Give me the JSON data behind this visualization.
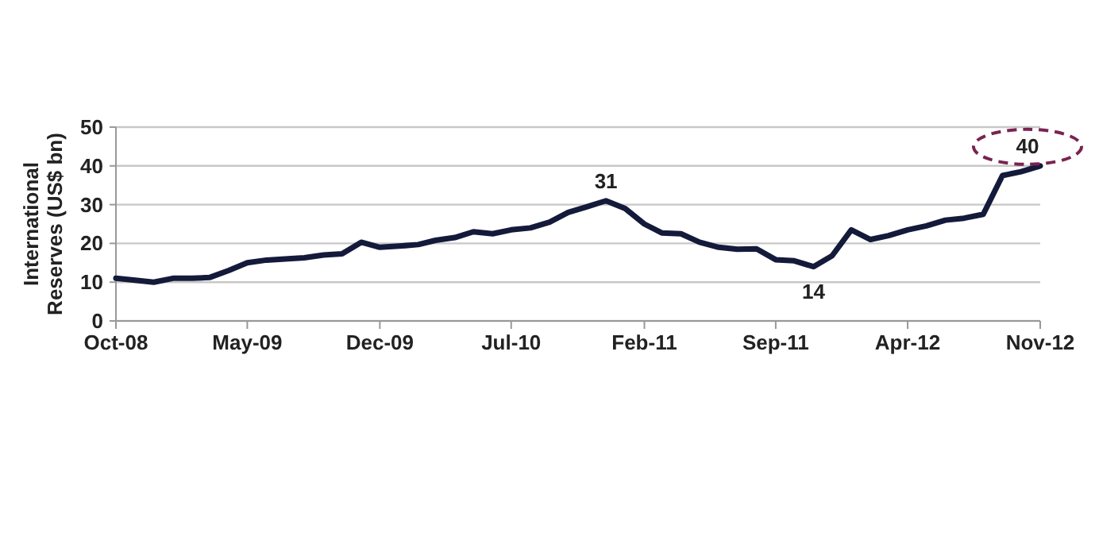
{
  "chart_data": {
    "type": "line",
    "ylabel": "International Reserves (US$ bn)",
    "x": [
      "2008-10",
      "2008-11",
      "2008-12",
      "2009-01",
      "2009-02",
      "2009-03",
      "2009-04",
      "2009-05",
      "2009-06",
      "2009-07",
      "2009-08",
      "2009-09",
      "2009-10",
      "2009-11",
      "2009-12",
      "2010-01",
      "2010-02",
      "2010-03",
      "2010-04",
      "2010-05",
      "2010-06",
      "2010-07",
      "2010-08",
      "2010-09",
      "2010-10",
      "2010-11",
      "2010-12",
      "2011-01",
      "2011-02",
      "2011-03",
      "2011-04",
      "2011-05",
      "2011-06",
      "2011-07",
      "2011-08",
      "2011-09",
      "2011-10",
      "2011-11",
      "2011-12",
      "2012-01",
      "2012-02",
      "2012-03",
      "2012-04",
      "2012-05",
      "2012-06",
      "2012-07",
      "2012-08",
      "2012-09",
      "2012-10",
      "2012-11"
    ],
    "series": [
      {
        "color": "#141a3a",
        "values": [
          11,
          10.5,
          10,
          11,
          11,
          11.2,
          13,
          15,
          15.7,
          16,
          16.3,
          17,
          17.3,
          20.3,
          19,
          19.3,
          19.7,
          20.8,
          21.5,
          23,
          22.5,
          23.5,
          24,
          25.5,
          28,
          29.5,
          31,
          29,
          25,
          22.7,
          22.5,
          20.3,
          19,
          18.5,
          18.6,
          15.8,
          15.5,
          14,
          16.8,
          23.5,
          21,
          22,
          23.5,
          24.5,
          26,
          26.5,
          27.5,
          37.5,
          38.5,
          40
        ],
        "value_labels": [
          null,
          null,
          null,
          null,
          null,
          null,
          null,
          null,
          null,
          null,
          null,
          null,
          null,
          null,
          null,
          null,
          null,
          null,
          null,
          null,
          null,
          null,
          null,
          null,
          null,
          null,
          "31",
          null,
          null,
          null,
          null,
          null,
          null,
          null,
          null,
          null,
          null,
          "14",
          null,
          null,
          null,
          null,
          null,
          null,
          null,
          null,
          null,
          null,
          null,
          "40"
        ]
      }
    ],
    "xlim": [
      "2008-10",
      "2012-11"
    ],
    "xticks": [
      {
        "value": "2008-10",
        "label": "Oct-08"
      },
      {
        "value": "2009-05",
        "label": "May-09"
      },
      {
        "value": "2009-12",
        "label": "Dec-09"
      },
      {
        "value": "2010-07",
        "label": "Jul-10"
      },
      {
        "value": "2011-02",
        "label": "Feb-11"
      },
      {
        "value": "2011-09",
        "label": "Sep-11"
      },
      {
        "value": "2012-04",
        "label": "Apr-12"
      },
      {
        "value": "2012-11",
        "label": "Nov-12"
      }
    ],
    "ylim": [
      0,
      50
    ],
    "yticks": [
      0,
      10,
      20,
      30,
      40,
      50
    ],
    "grid": "y",
    "marker": "none",
    "line_style": "solid"
  }
}
